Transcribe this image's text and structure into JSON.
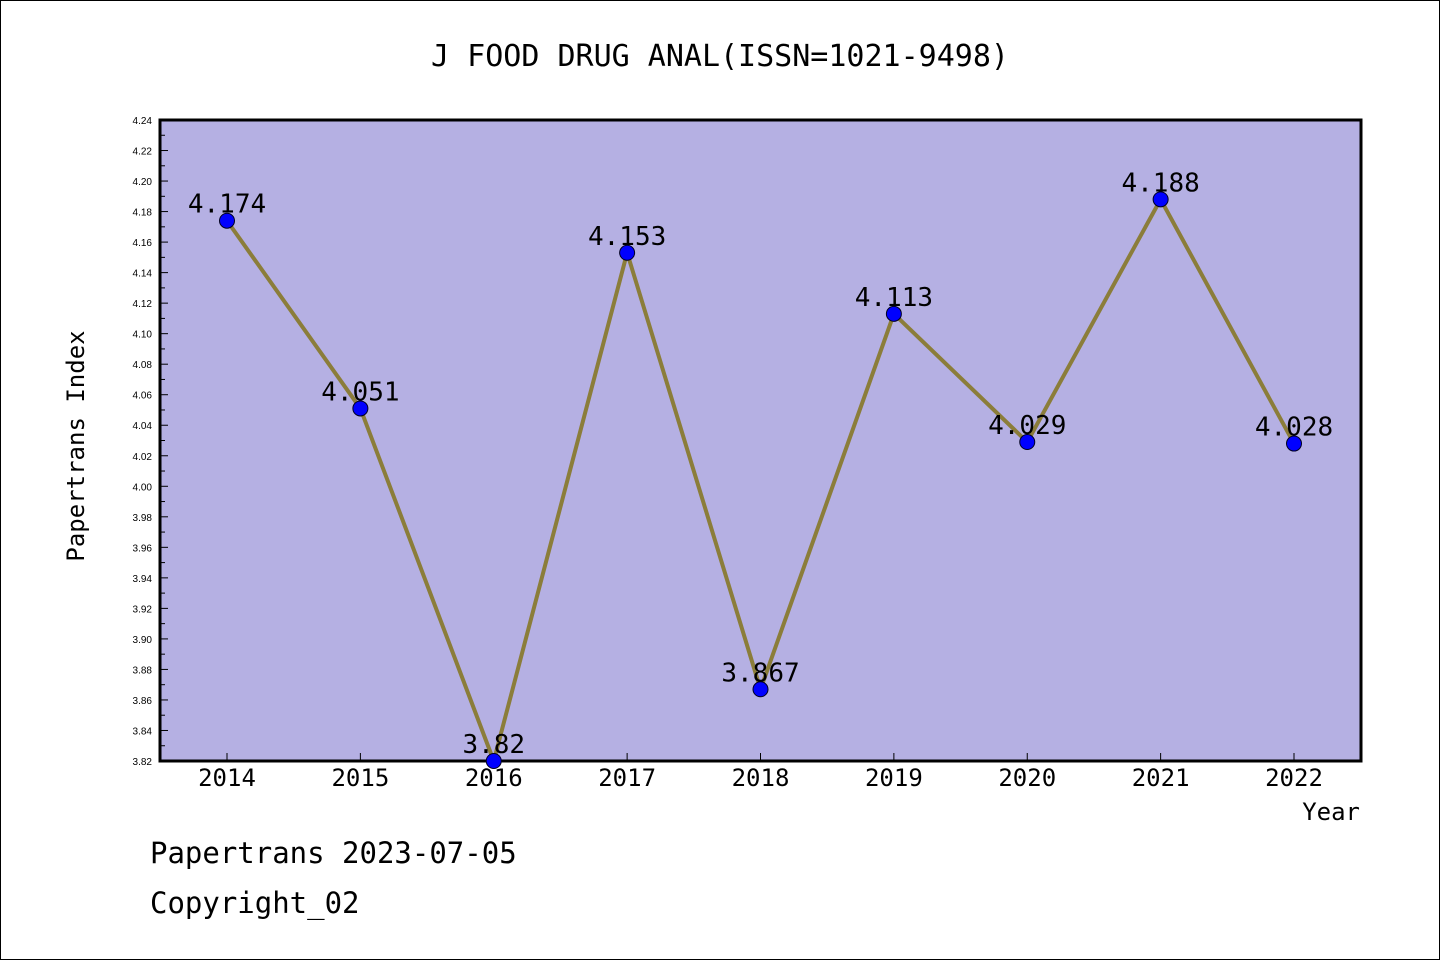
{
  "chart_data": {
    "type": "line",
    "title": "J FOOD DRUG ANAL(ISSN=1021-9498)",
    "xlabel": "Year",
    "ylabel": "Papertrans Index",
    "x": [
      "2014",
      "2015",
      "2016",
      "2017",
      "2018",
      "2019",
      "2020",
      "2021",
      "2022"
    ],
    "series": [
      {
        "values": [
          4.174,
          4.051,
          3.82,
          4.153,
          3.867,
          4.113,
          4.029,
          4.188,
          4.028
        ],
        "labels": [
          "4.174",
          "4.051",
          "3.82",
          "4.153",
          "3.867",
          "4.113",
          "4.029",
          "4.188",
          "4.028"
        ]
      }
    ],
    "ylim": [
      3.82,
      4.24
    ],
    "yticks": [
      "3.82",
      "3.84",
      "3.86",
      "3.88",
      "3.90",
      "3.92",
      "3.94",
      "3.96",
      "3.98",
      "4.00",
      "4.02",
      "4.04",
      "4.06",
      "4.08",
      "4.10",
      "4.12",
      "4.14",
      "4.16",
      "4.18",
      "4.20",
      "4.22",
      "4.24"
    ],
    "grid": false,
    "colors": {
      "plot_background": "#b5b0e3",
      "line": "#8b7d3a",
      "marker": "#0000ff"
    }
  },
  "footer": {
    "line1": "Papertrans 2023-07-05",
    "line2": "Copyright_02"
  }
}
